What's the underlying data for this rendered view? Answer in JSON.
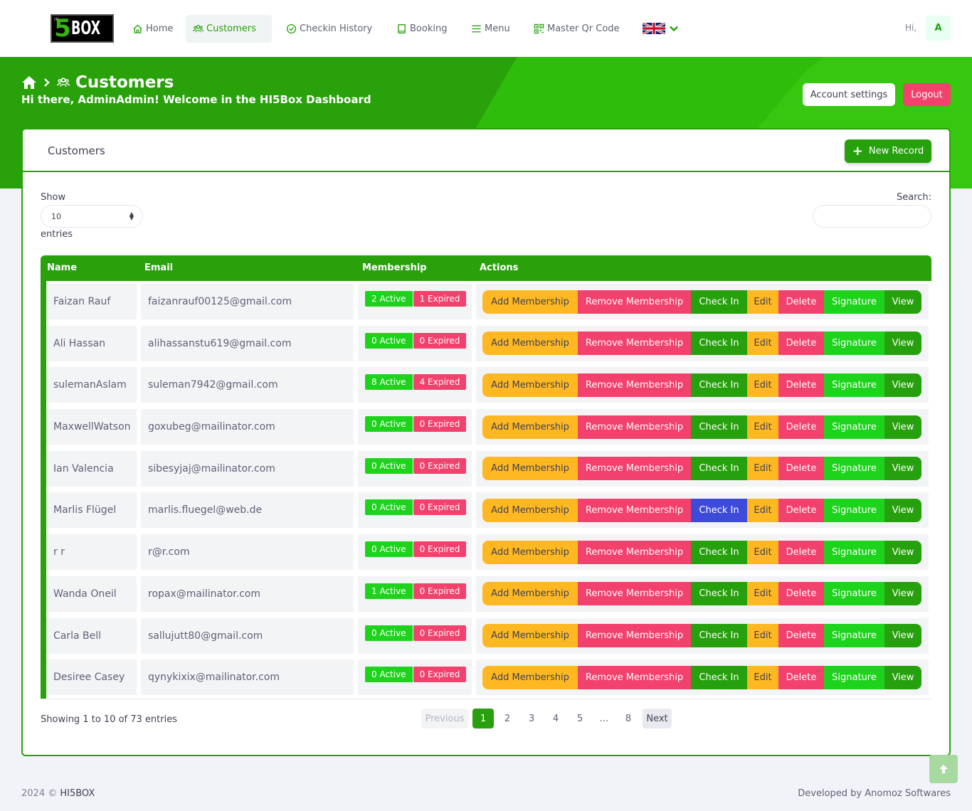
{
  "nav": {
    "logo_hi": "Hi",
    "logo_five": "5",
    "logo_box": "BOX",
    "items": [
      {
        "label": "Home",
        "icon": "home-icon"
      },
      {
        "label": "Customers",
        "icon": "users-icon"
      },
      {
        "label": "Checkin History",
        "icon": "check-circle-icon"
      },
      {
        "label": "Booking",
        "icon": "book-icon"
      },
      {
        "label": "Menu",
        "icon": "menu-icon"
      },
      {
        "label": "Master Qr Code",
        "icon": "qr-code-icon"
      }
    ],
    "language": "uk-flag-icon",
    "greeting": "Hi,",
    "avatar_letter": "A"
  },
  "hero": {
    "page_title": "Customers",
    "welcome": "Hi there, AdminAdmin! Welcome in the HI5Box Dashboard",
    "account_settings": "Account settings",
    "logout": "Logout"
  },
  "card": {
    "title": "Customers",
    "new_record": "New Record",
    "show_label": "Show",
    "page_length": "10",
    "entries_label": "entries",
    "search_label": "Search:",
    "search_value": ""
  },
  "table": {
    "columns": [
      "Name",
      "Email",
      "Membership",
      "Actions"
    ],
    "action_labels": {
      "add": "Add Membership",
      "remove": "Remove Membership",
      "checkin": "Check In",
      "edit": "Edit",
      "delete": "Delete",
      "signature": "Signature",
      "view": "View"
    },
    "rows": [
      {
        "name": "Faizan Rauf",
        "email": "faizanrauf00125@gmail.com",
        "active": "2 Active",
        "expired": "1 Expired"
      },
      {
        "name": "Ali Hassan",
        "email": "alihassanstu619@gmail.com",
        "active": "0 Active",
        "expired": "0 Expired"
      },
      {
        "name": "sulemanAslam",
        "email": "suleman7942@gmail.com",
        "active": "8 Active",
        "expired": "4 Expired"
      },
      {
        "name": "MaxwellWatson",
        "email": "goxubeg@mailinator.com",
        "active": "0 Active",
        "expired": "0 Expired"
      },
      {
        "name": "Ian Valencia",
        "email": "sibesyjaj@mailinator.com",
        "active": "0 Active",
        "expired": "0 Expired"
      },
      {
        "name": "Marlis Flügel",
        "email": "marlis.fluegel@web.de",
        "active": "0 Active",
        "expired": "0 Expired"
      },
      {
        "name": "r r",
        "email": "r@r.com",
        "active": "0 Active",
        "expired": "0 Expired"
      },
      {
        "name": "Wanda Oneil",
        "email": "ropax@mailinator.com",
        "active": "1 Active",
        "expired": "0 Expired"
      },
      {
        "name": "Carla Bell",
        "email": "sallujutt80@gmail.com",
        "active": "0 Active",
        "expired": "0 Expired"
      },
      {
        "name": "Desiree Casey",
        "email": "qynykixix@mailinator.com",
        "active": "0 Active",
        "expired": "0 Expired"
      }
    ]
  },
  "pagination": {
    "info": "Showing 1 to 10 of 73 entries",
    "previous": "Previous",
    "pages": [
      "1",
      "2",
      "3",
      "4",
      "5",
      "…",
      "8"
    ],
    "current": "1",
    "next": "Next"
  },
  "footer": {
    "year": "2024 ©",
    "brand": "HI5BOX",
    "developer": "Developed by Anomoz Softwares"
  },
  "colors": {
    "brand_green": "#28a10b",
    "danger": "#f1416c",
    "warning": "#ffb822",
    "success": "#1dd31c",
    "highlight_blue": "#3e4bd8"
  }
}
